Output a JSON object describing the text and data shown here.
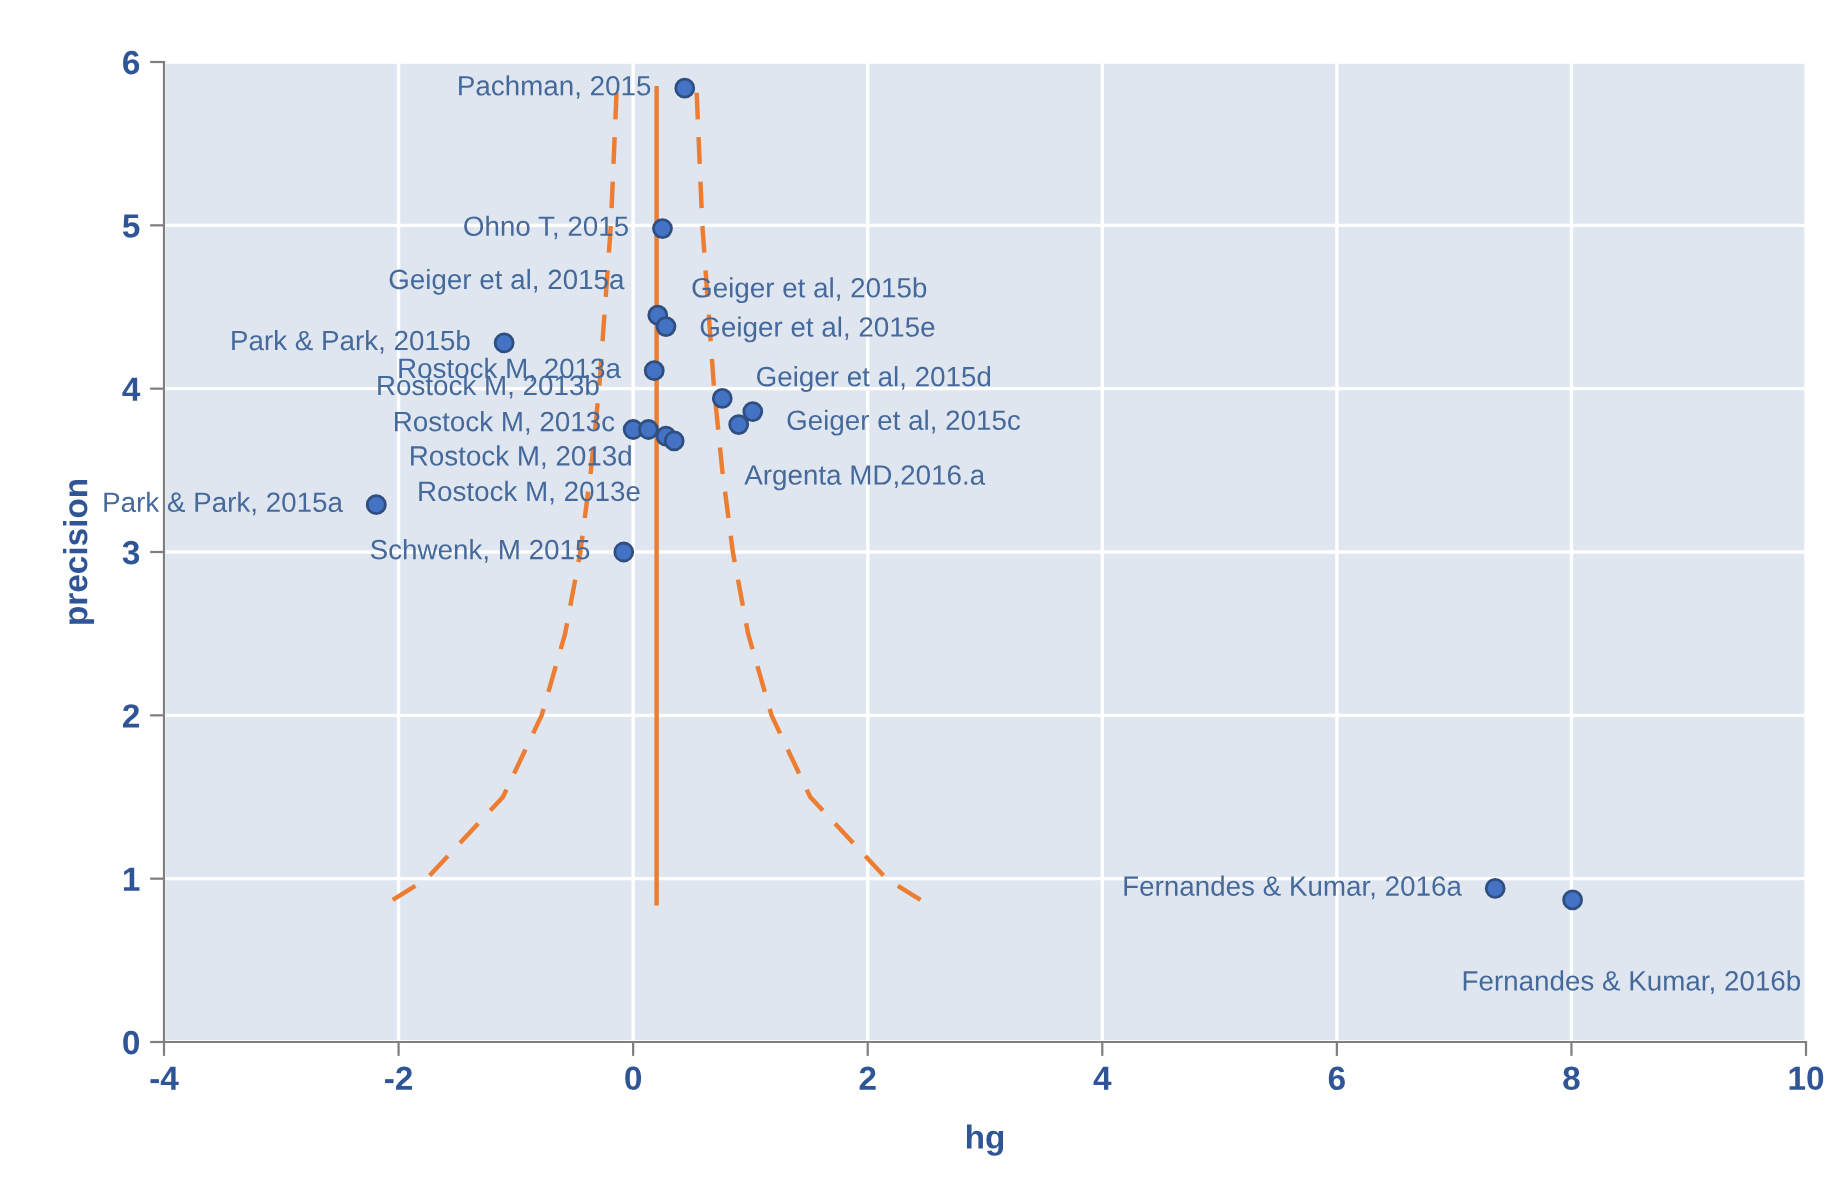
{
  "chart_data": {
    "type": "scatter",
    "xlabel": "hg",
    "ylabel": "precision",
    "xlim": [
      -4,
      10
    ],
    "xticks": [
      -4,
      -2,
      0,
      2,
      4,
      6,
      8,
      10
    ],
    "ylim": [
      0,
      6
    ],
    "yticks": [
      0,
      1,
      2,
      3,
      4,
      5,
      6
    ],
    "grid": true,
    "series": [
      {
        "type": "line",
        "color": "#ed7d31",
        "line_style": "dashed",
        "x": [
          -2.05,
          -1.76,
          -1.11,
          -0.78,
          -0.58,
          -0.45,
          -0.36,
          -0.29,
          -0.24,
          -0.19,
          -0.16,
          -0.14
        ],
        "values": [
          0.87,
          1.0,
          1.5,
          2,
          2.5,
          3,
          3.5,
          4,
          4.5,
          5,
          5.5,
          5.84
        ]
      },
      {
        "type": "line",
        "color": "#ed7d31",
        "line_style": "dashed",
        "x": [
          2.45,
          2.16,
          1.51,
          1.18,
          0.98,
          0.85,
          0.76,
          0.69,
          0.64,
          0.59,
          0.56,
          0.54
        ],
        "values": [
          0.87,
          1.0,
          1.5,
          2,
          2.5,
          3,
          3.5,
          4,
          4.5,
          5,
          5.5,
          5.84
        ]
      },
      {
        "type": "line",
        "color": "#ed7d31",
        "line_style": "solid",
        "x": [
          0.2,
          0.2
        ],
        "values": [
          0.85,
          5.84
        ]
      },
      {
        "color": "#4472c4",
        "marker": "circle",
        "x": [
          0.44,
          0.25,
          0.21,
          0.28,
          -1.1,
          0.18,
          0.76,
          1.02,
          0.9,
          0.0,
          0.13,
          0.28,
          0.35,
          -2.19,
          -0.08,
          7.35,
          8.01
        ],
        "values": [
          5.84,
          4.98,
          4.45,
          4.38,
          4.28,
          4.11,
          3.94,
          3.86,
          3.78,
          3.75,
          3.75,
          3.71,
          3.68,
          3.29,
          3.0,
          0.94,
          0.87
        ]
      }
    ],
    "annotations": [
      {
        "text": "Pachman, 2015",
        "x": 0.44,
        "y": 5.84
      },
      {
        "text": "Ohno T, 2015",
        "x": 0.25,
        "y": 4.98
      },
      {
        "text": "Geiger et al, 2015a",
        "x": 0.21,
        "y": 4.45
      },
      {
        "text": "Geiger et al, 2015b",
        "x": 0.21,
        "y": 4.45
      },
      {
        "text": "Geiger et al, 2015e",
        "x": 0.28,
        "y": 4.38
      },
      {
        "text": "Park & Park, 2015b",
        "x": -1.1,
        "y": 4.28
      },
      {
        "text": "Rostock M, 2013a",
        "x": 0.18,
        "y": 4.11
      },
      {
        "text": "Geiger et al, 2015d",
        "x": 0.76,
        "y": 3.94
      },
      {
        "text": "Geiger et al, 2015c",
        "x": 1.02,
        "y": 3.86
      },
      {
        "text": "Argenta MD,2016.a",
        "x": 0.9,
        "y": 3.78
      },
      {
        "text": "Rostock M, 2013b",
        "x": 0.0,
        "y": 3.75
      },
      {
        "text": "Rostock M, 2013c",
        "x": 0.13,
        "y": 3.75
      },
      {
        "text": "Rostock M, 2013d",
        "x": 0.28,
        "y": 3.71
      },
      {
        "text": "Rostock M, 2013e",
        "x": 0.35,
        "y": 3.68
      },
      {
        "text": "Park & Park, 2015a",
        "x": -2.19,
        "y": 3.29
      },
      {
        "text": "Schwenk, M 2015",
        "x": -0.08,
        "y": 3.0
      },
      {
        "text": "Fernandes & Kumar, 2016a",
        "x": 7.35,
        "y": 0.94
      },
      {
        "text": "Fernandes & Kumar, 2016b",
        "x": 8.01,
        "y": 0.87
      }
    ]
  }
}
